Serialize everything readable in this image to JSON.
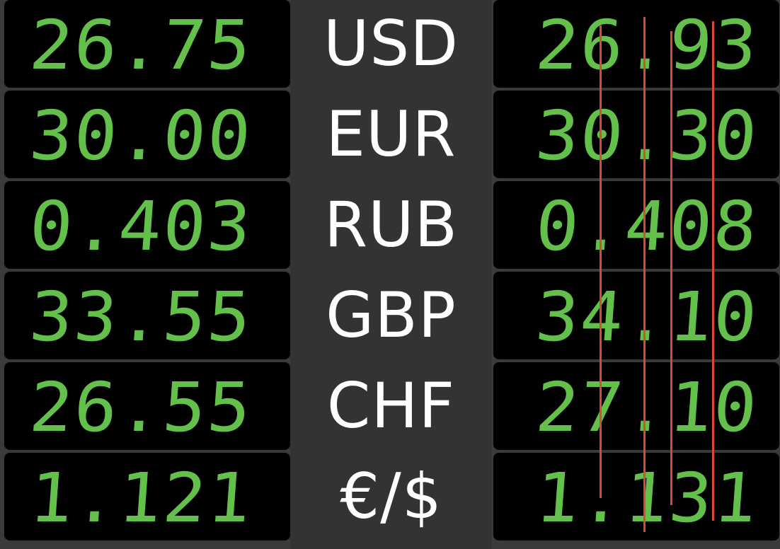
{
  "rows": [
    {
      "currency": "USD",
      "buy": "26.75",
      "sell": "26.93"
    },
    {
      "currency": "EUR",
      "buy": "30.00",
      "sell": "30.30"
    },
    {
      "currency": "RUB",
      "buy": "0.403",
      "sell": "0.408"
    },
    {
      "currency": "GBP",
      "buy": "33.55",
      "sell": "34.10"
    },
    {
      "currency": "CHF",
      "buy": "26.55",
      "sell": "27.10"
    },
    {
      "currency": "€/$",
      "buy": "1.121",
      "sell": "1.131"
    }
  ],
  "colors": {
    "digit_green": "#63c14b",
    "panel_black": "#000000",
    "center_gray": "#333333",
    "background_gray": "#3a3a3a",
    "marker_red": "#d94a2e"
  }
}
